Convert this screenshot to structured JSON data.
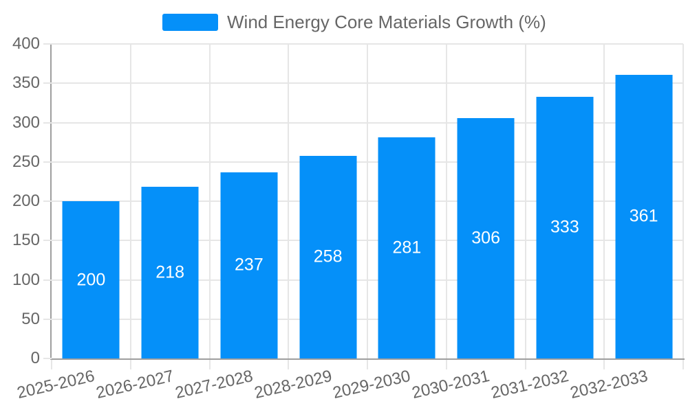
{
  "chart_data": {
    "type": "bar",
    "title": "",
    "legend": "Wind Energy Core Materials Growth (%)",
    "legend_position": "top-center",
    "categories": [
      "2025-2026",
      "2026-2027",
      "2027-2028",
      "2028-2029",
      "2029-2030",
      "2030-2031",
      "2031-2032",
      "2032-2033"
    ],
    "values": [
      200,
      218,
      237,
      258,
      281,
      306,
      333,
      361
    ],
    "value_labels_shown": true,
    "xlabel": "",
    "ylabel": "",
    "ylim": [
      0,
      400
    ],
    "yticks": [
      0,
      50,
      100,
      150,
      200,
      250,
      300,
      350,
      400
    ],
    "grid": "horizontal and vertical light gray gridlines",
    "x_label_rotation_deg": -13,
    "colors": {
      "bar": "#0590f9",
      "value_label": "#ffffff",
      "axis_line": "#9e9e9e",
      "grid_line": "#e6e6e6",
      "tick_label": "#666666",
      "legend_text": "#666666",
      "background": "#ffffff"
    }
  }
}
